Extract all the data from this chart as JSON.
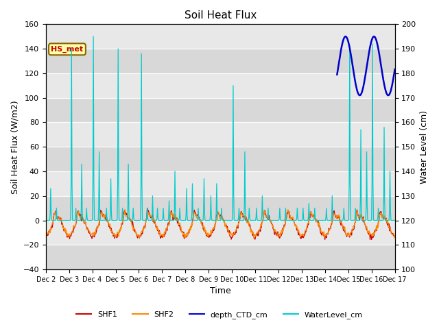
{
  "title": "Soil Heat Flux",
  "ylabel_left": "Soil Heat Flux (W/m2)",
  "ylabel_right": "Water Level (cm)",
  "xlabel": "Time",
  "ylim_left": [
    -40,
    160
  ],
  "ylim_right": [
    100,
    200
  ],
  "background_color": "#ffffff",
  "plot_bg_color": "#e8e8e8",
  "legend_labels": [
    "SHF1",
    "SHF2",
    "depth_CTD_cm",
    "WaterLevel_cm"
  ],
  "legend_colors": [
    "#cc0000",
    "#ff8800",
    "#0000cc",
    "#00cccc"
  ],
  "hs_met_label": "HS_met",
  "hs_met_bg": "#ffffaa",
  "hs_met_border": "#886600",
  "hs_met_text_color": "#cc0000",
  "x_tick_labels": [
    "Dec 2",
    "Dec 3",
    "Dec 4",
    "Dec 5",
    "Dec 6",
    "Dec 7",
    "Dec 8",
    "Dec 9",
    "Dec 10",
    "Dec 11",
    "Dec 12",
    "Dec 13",
    "Dec 14",
    "Dec 15",
    "Dec 16",
    "Dec 17"
  ],
  "yticks_left": [
    -40,
    -20,
    0,
    20,
    40,
    60,
    80,
    100,
    120,
    140,
    160
  ],
  "yticks_right": [
    100,
    110,
    120,
    130,
    140,
    150,
    160,
    170,
    180,
    190,
    200
  ],
  "num_days": 15
}
